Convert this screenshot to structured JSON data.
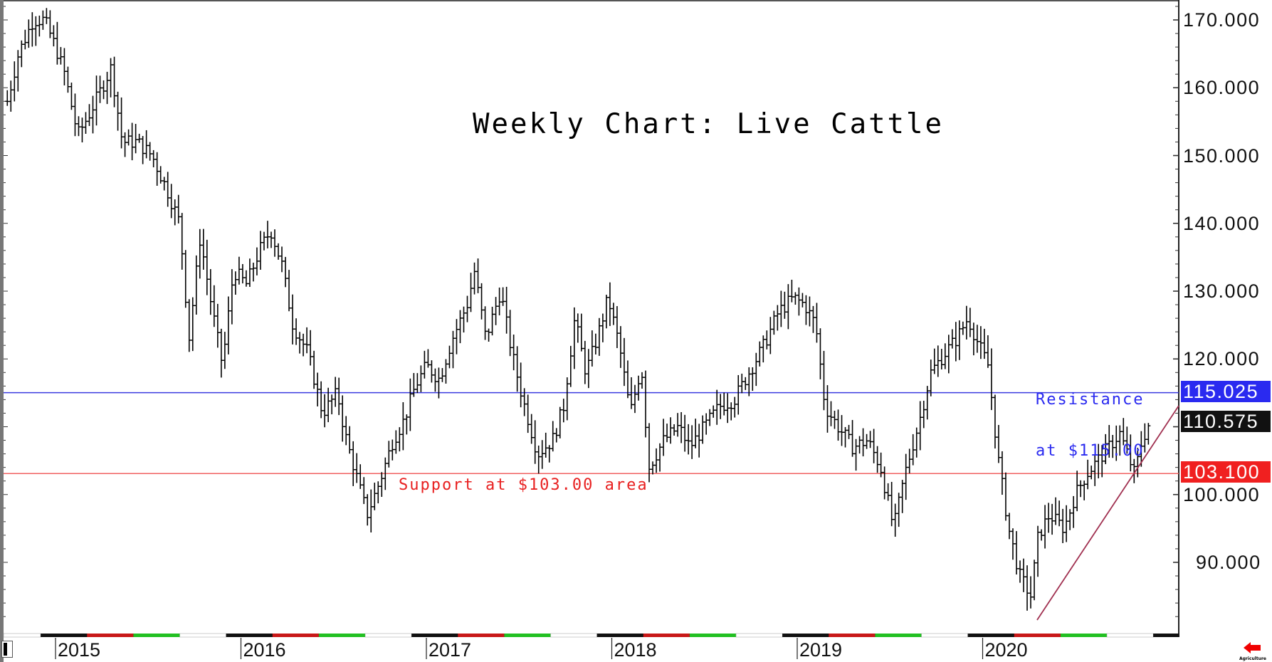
{
  "chart_data": {
    "type": "ohlc_bar",
    "title": "Weekly Chart: Live Cattle",
    "xlabel": "",
    "ylabel": "",
    "ylim": [
      81,
      172
    ],
    "grid": false,
    "x_ticks": [
      "2015",
      "2016",
      "2017",
      "2018",
      "2019",
      "2020"
    ],
    "y_ticks": [
      "170.000",
      "160.000",
      "150.000",
      "140.000",
      "130.000",
      "120.000",
      "100.000",
      "90.000"
    ],
    "y_tick_values": [
      170,
      160,
      150,
      140,
      130,
      120,
      100,
      90
    ],
    "price_markers": [
      {
        "label": "115.025",
        "value": 115.025,
        "color": "#2a2af0",
        "meaning": "resistance line"
      },
      {
        "label": "110.575",
        "value": 110.575,
        "color": "#111111",
        "meaning": "last price"
      },
      {
        "label": "103.100",
        "value": 103.1,
        "color": "#f02020",
        "meaning": "support line"
      }
    ],
    "horizontal_lines": [
      {
        "value": 115.025,
        "color": "#3a3ae0"
      },
      {
        "value": 103.1,
        "color": "#f06060"
      }
    ],
    "trendline": {
      "from": {
        "date": 2020.29,
        "price": 82.5
      },
      "to": {
        "date": 2021.06,
        "price": 114.0
      },
      "color": "#a03050"
    },
    "annotations": [
      {
        "text": "Resistance\nat $115.00",
        "color": "#2a2af0"
      },
      {
        "text": "Support at $103.00 area",
        "color": "#e82020"
      }
    ],
    "close_keypoints": [
      [
        2014.74,
        158
      ],
      [
        2014.8,
        165
      ],
      [
        2014.88,
        170
      ],
      [
        2014.94,
        170
      ],
      [
        2015.0,
        166
      ],
      [
        2015.05,
        162
      ],
      [
        2015.12,
        153
      ],
      [
        2015.18,
        156
      ],
      [
        2015.25,
        160
      ],
      [
        2015.3,
        163
      ],
      [
        2015.36,
        152
      ],
      [
        2015.44,
        152
      ],
      [
        2015.52,
        150
      ],
      [
        2015.6,
        145
      ],
      [
        2015.67,
        140
      ],
      [
        2015.72,
        123
      ],
      [
        2015.78,
        138
      ],
      [
        2015.84,
        128
      ],
      [
        2015.9,
        119
      ],
      [
        2015.96,
        133
      ],
      [
        2016.03,
        131
      ],
      [
        2016.1,
        136
      ],
      [
        2016.16,
        139
      ],
      [
        2016.22,
        134
      ],
      [
        2016.28,
        125
      ],
      [
        2016.36,
        121
      ],
      [
        2016.44,
        112
      ],
      [
        2016.52,
        115
      ],
      [
        2016.56,
        109
      ],
      [
        2016.62,
        103
      ],
      [
        2016.68,
        97
      ],
      [
        2016.75,
        102
      ],
      [
        2016.82,
        108
      ],
      [
        2016.88,
        111
      ],
      [
        2016.94,
        116
      ],
      [
        2017.0,
        119
      ],
      [
        2017.07,
        117
      ],
      [
        2017.14,
        123
      ],
      [
        2017.22,
        128
      ],
      [
        2017.26,
        133
      ],
      [
        2017.32,
        123
      ],
      [
        2017.4,
        130
      ],
      [
        2017.46,
        121
      ],
      [
        2017.52,
        114
      ],
      [
        2017.6,
        106
      ],
      [
        2017.68,
        108
      ],
      [
        2017.74,
        113
      ],
      [
        2017.8,
        126
      ],
      [
        2017.86,
        118
      ],
      [
        2017.92,
        123
      ],
      [
        2017.98,
        129
      ],
      [
        2018.04,
        122
      ],
      [
        2018.1,
        112
      ],
      [
        2018.16,
        119
      ],
      [
        2018.2,
        104
      ],
      [
        2018.28,
        108
      ],
      [
        2018.36,
        110
      ],
      [
        2018.42,
        107
      ],
      [
        2018.5,
        110
      ],
      [
        2018.58,
        113
      ],
      [
        2018.66,
        114
      ],
      [
        2018.74,
        118
      ],
      [
        2018.82,
        122
      ],
      [
        2018.9,
        127
      ],
      [
        2018.98,
        129
      ],
      [
        2019.04,
        128
      ],
      [
        2019.1,
        125
      ],
      [
        2019.15,
        113
      ],
      [
        2019.22,
        110
      ],
      [
        2019.3,
        107
      ],
      [
        2019.38,
        108
      ],
      [
        2019.45,
        104
      ],
      [
        2019.52,
        95
      ],
      [
        2019.58,
        103
      ],
      [
        2019.66,
        111
      ],
      [
        2019.72,
        118
      ],
      [
        2019.8,
        121
      ],
      [
        2019.86,
        123
      ],
      [
        2019.92,
        126
      ],
      [
        2019.98,
        122
      ],
      [
        2020.03,
        119
      ],
      [
        2020.08,
        106
      ],
      [
        2020.14,
        95
      ],
      [
        2020.2,
        88
      ],
      [
        2020.26,
        85
      ],
      [
        2020.3,
        94
      ],
      [
        2020.36,
        97
      ],
      [
        2020.44,
        95
      ],
      [
        2020.5,
        100
      ],
      [
        2020.56,
        103
      ],
      [
        2020.62,
        105
      ],
      [
        2020.68,
        107
      ],
      [
        2020.74,
        109
      ],
      [
        2020.78,
        106
      ],
      [
        2020.82,
        103
      ],
      [
        2020.86,
        108
      ],
      [
        2020.9,
        110.575
      ]
    ]
  },
  "badges": {
    "resistance": "115.025",
    "last": "110.575",
    "support": "103.100"
  },
  "annotations": {
    "resistance_line1": "Resistance",
    "resistance_line2": "at $115.00",
    "support": "Support at $103.00 area"
  },
  "footer": {
    "brand_label": "Agriculture",
    "back_icon": "red-left-arrow-icon"
  }
}
